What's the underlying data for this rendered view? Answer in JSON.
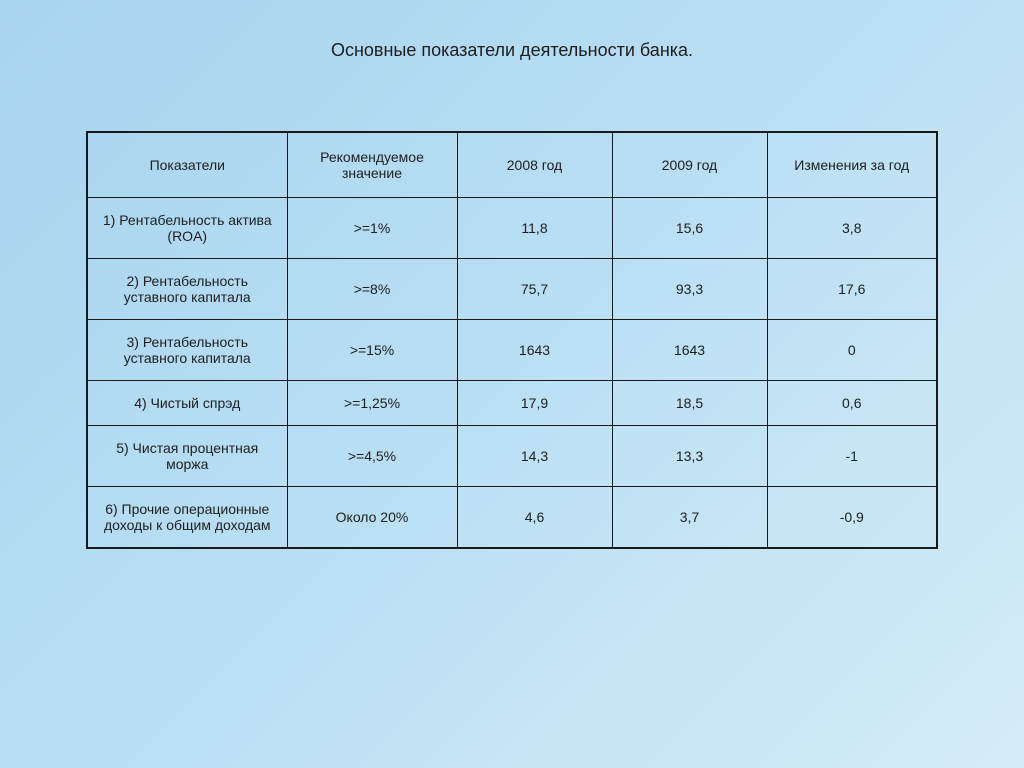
{
  "title": "Основные показатели деятельности банка.",
  "table": {
    "border_color": "#1a1a1a",
    "outer_border_width": 2,
    "inner_border_width": 1,
    "text_color": "#1e1e1e",
    "columns": [
      {
        "label": "Показатели",
        "class": "col-indicator"
      },
      {
        "label": "Рекомендуемое значение",
        "class": "col-recommended"
      },
      {
        "label": "2008 год",
        "class": "col-2008"
      },
      {
        "label": "2009 год",
        "class": "col-2009"
      },
      {
        "label": "Изменения за год",
        "class": "col-change"
      }
    ],
    "rows": [
      {
        "indicator": "1) Рентабельность актива (ROA)",
        "recommended": ">=1%",
        "y2008": "11,8",
        "y2009": "15,6",
        "change": "3,8"
      },
      {
        "indicator": "2) Рентабельность уставного капитала",
        "recommended": ">=8%",
        "y2008": "75,7",
        "y2009": "93,3",
        "change": "17,6"
      },
      {
        "indicator": "3) Рентабельность уставного капитала",
        "recommended": ">=15%",
        "y2008": "1643",
        "y2009": "1643",
        "change": "0"
      },
      {
        "indicator": "4) Чистый спрэд",
        "recommended": ">=1,25%",
        "y2008": "17,9",
        "y2009": "18,5",
        "change": "0,6"
      },
      {
        "indicator": "5) Чистая процентная моржа",
        "recommended": ">=4,5%",
        "y2008": "14,3",
        "y2009": "13,3",
        "change": "-1"
      },
      {
        "indicator": "6) Прочие операционные доходы к общим доходам",
        "recommended": "Около 20%",
        "y2008": "4,6",
        "y2009": "3,7",
        "change": "-0,9"
      }
    ]
  },
  "background": {
    "gradient_start": "#a7d4ef",
    "gradient_mid": "#b8def3",
    "gradient_end": "#d4ecf7"
  },
  "title_color": "#1e1e1e"
}
